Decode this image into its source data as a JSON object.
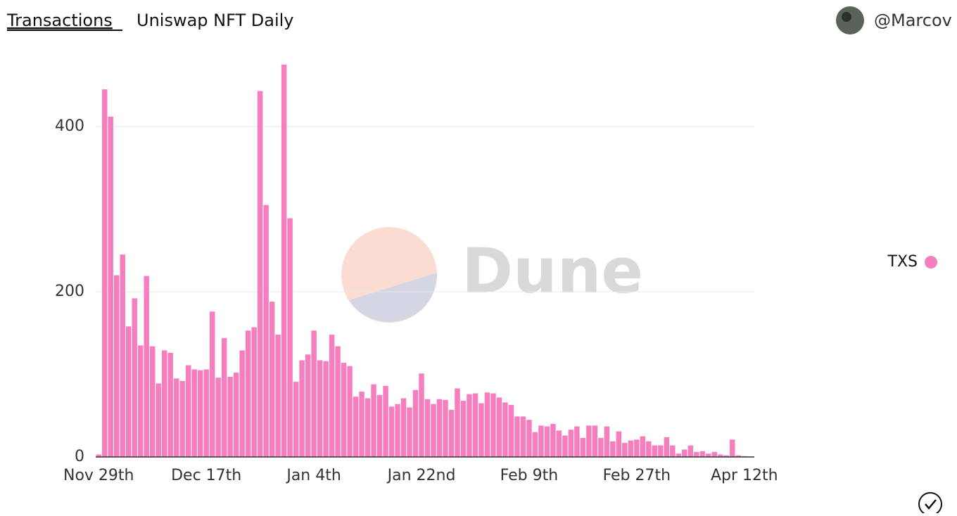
{
  "header": {
    "tab": "Transactions",
    "title": "Uniswap NFT Daily",
    "user": "@Marcov"
  },
  "watermark": "Dune",
  "chart_data": {
    "type": "bar",
    "categories": [
      "Nov 29th",
      null,
      null,
      null,
      null,
      null,
      null,
      null,
      null,
      null,
      null,
      null,
      null,
      null,
      null,
      null,
      null,
      null,
      "Dec 17th",
      null,
      null,
      null,
      null,
      null,
      null,
      null,
      null,
      null,
      null,
      null,
      null,
      null,
      null,
      null,
      null,
      null,
      "Jan 4th",
      null,
      null,
      null,
      null,
      null,
      null,
      null,
      null,
      null,
      null,
      null,
      null,
      null,
      null,
      null,
      null,
      null,
      "Jan 22nd",
      null,
      null,
      null,
      null,
      null,
      null,
      null,
      null,
      null,
      null,
      null,
      null,
      null,
      null,
      null,
      null,
      null,
      "Feb 9th",
      null,
      null,
      null,
      null,
      null,
      null,
      null,
      null,
      null,
      null,
      null,
      null,
      null,
      null,
      null,
      null,
      null,
      "Feb 27th",
      null,
      null,
      null,
      null,
      null,
      null,
      null,
      null,
      null,
      null,
      null,
      null,
      null,
      null,
      null,
      null,
      null,
      "Apr 12th"
    ],
    "series": [
      {
        "name": "TXS",
        "color": "#f67ebf",
        "values": [
          3,
          445,
          412,
          220,
          245,
          158,
          192,
          135,
          219,
          134,
          89,
          129,
          126,
          95,
          92,
          111,
          106,
          105,
          106,
          176,
          96,
          144,
          97,
          102,
          129,
          153,
          157,
          443,
          305,
          188,
          148,
          475,
          289,
          91,
          117,
          124,
          153,
          117,
          116,
          148,
          134,
          114,
          110,
          73,
          79,
          71,
          88,
          75,
          86,
          61,
          64,
          71,
          60,
          81,
          101,
          70,
          64,
          70,
          69,
          57,
          83,
          68,
          76,
          77,
          65,
          78,
          77,
          72,
          66,
          63,
          49,
          49,
          45,
          30,
          38,
          37,
          40,
          32,
          26,
          33,
          37,
          23,
          38,
          38,
          23,
          37,
          19,
          31,
          17,
          20,
          21,
          25,
          19,
          14,
          14,
          24,
          14,
          4,
          9,
          14,
          6,
          7,
          4,
          6,
          3,
          2,
          21,
          2,
          1
        ]
      }
    ],
    "ylim": [
      0,
      480
    ],
    "yticks": [
      0,
      200,
      400
    ],
    "grid": true,
    "legend": "right"
  }
}
